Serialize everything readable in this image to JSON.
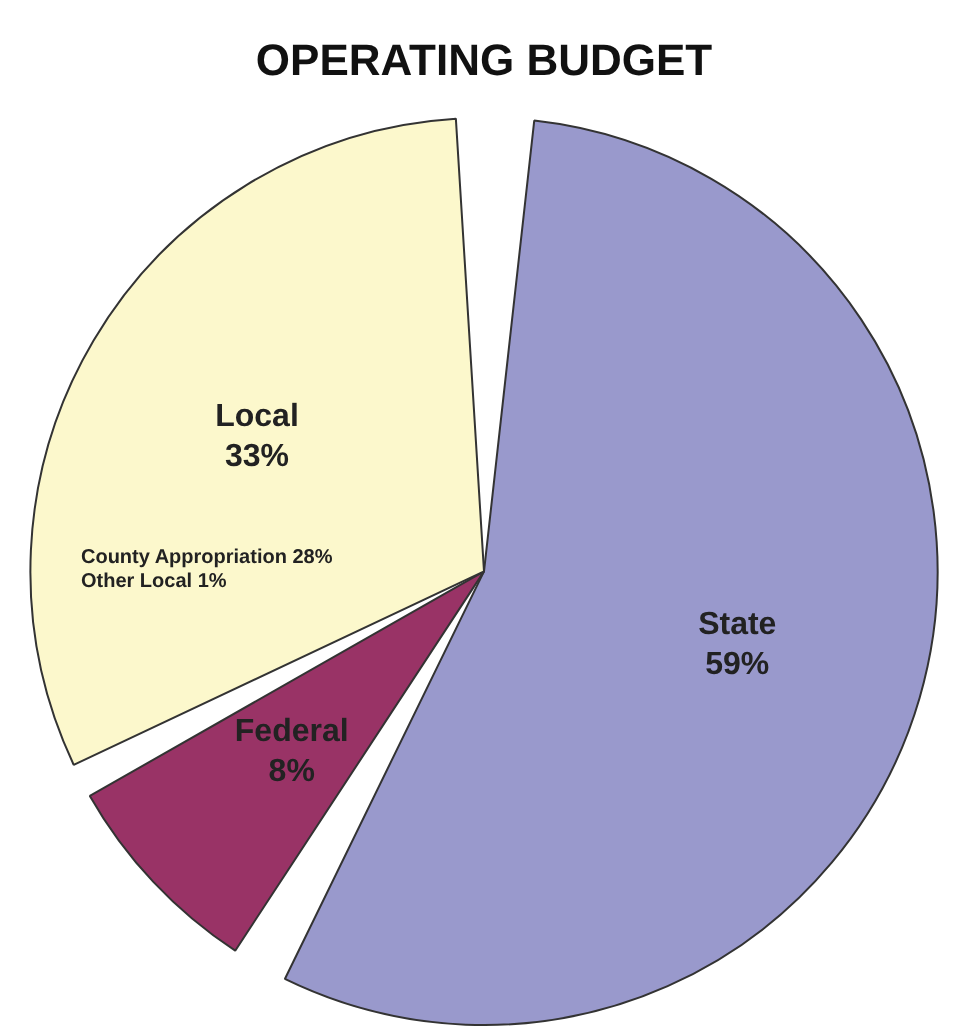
{
  "chart_data": {
    "type": "pie",
    "title": "OPERATING BUDGET",
    "categories": [
      "State",
      "Federal",
      "Local"
    ],
    "values": [
      59,
      8,
      33
    ],
    "value_labels": [
      "59%",
      "8%",
      "33%"
    ],
    "colors": [
      "#9999cc",
      "#993366",
      "#fcf8cc"
    ],
    "annotations": [
      "County Appropriation 28%",
      "Other Local 1%"
    ],
    "legend": false
  }
}
